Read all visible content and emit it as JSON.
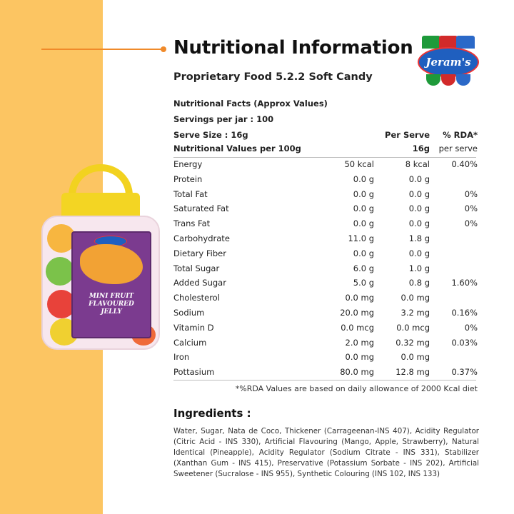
{
  "header": {
    "title": "Nutritional Information",
    "subtitle": "Proprietary Food 5.2.2 Soft Candy"
  },
  "logo": {
    "brand": "Jeram's"
  },
  "product": {
    "label_text": "MINI FRUIT FLAVOURED JELLY"
  },
  "facts": {
    "heading": "Nutritional  Facts (Approx Values)",
    "servings": "Servings  per jar : 100",
    "serve_size": "Serve Size : 16g",
    "per100_label": "Nutritional  Values per 100g",
    "per_serve_line1": "Per Serve",
    "per_serve_line2": "16g",
    "rda_line1": "% RDA*",
    "rda_line2": "per serve",
    "rows": [
      {
        "name": "Energy",
        "per100": "50 kcal",
        "serve": "8 kcal",
        "rda": "0.40%"
      },
      {
        "name": "Protein",
        "per100": "0.0 g",
        "serve": "0.0 g",
        "rda": ""
      },
      {
        "name": "Total  Fat",
        "per100": "0.0 g",
        "serve": "0.0 g",
        "rda": "0%"
      },
      {
        "name": "Saturated  Fat",
        "per100": "0.0 g",
        "serve": "0.0 g",
        "rda": "0%"
      },
      {
        "name": "Trans  Fat",
        "per100": "0.0 g",
        "serve": "0.0 g",
        "rda": "0%"
      },
      {
        "name": "Carbohydrate",
        "per100": "11.0 g",
        "serve": "1.8 g",
        "rda": ""
      },
      {
        "name": "Dietary  Fiber",
        "per100": "0.0 g",
        "serve": "0.0 g",
        "rda": ""
      },
      {
        "name": "Total Sugar",
        "per100": "6.0 g",
        "serve": "1.0 g",
        "rda": ""
      },
      {
        "name": "Added Sugar",
        "per100": "5.0 g",
        "serve": "0.8 g",
        "rda": "1.60%"
      },
      {
        "name": "Cholesterol",
        "per100": "0.0 mg",
        "serve": "0.0 mg",
        "rda": ""
      },
      {
        "name": "Sodium",
        "per100": "20.0 mg",
        "serve": "3.2 mg",
        "rda": "0.16%"
      },
      {
        "name": "Vitamin D",
        "per100": "0.0 mcg",
        "serve": "0.0 mcg",
        "rda": "0%"
      },
      {
        "name": "Calcium",
        "per100": "2.0 mg",
        "serve": "0.32 mg",
        "rda": "0.03%"
      },
      {
        "name": "Iron",
        "per100": "0.0 mg",
        "serve": "0.0 mg",
        "rda": ""
      },
      {
        "name": "Pottasium",
        "per100": "80.0 mg",
        "serve": "12.8 mg",
        "rda": "0.37%"
      }
    ],
    "footnote": "*%RDA Values are based on daily allowance of 2000 Kcal diet"
  },
  "ingredients": {
    "title": "Ingredients :",
    "text": "Water, Sugar, Nata de Coco, Thickener (Carrageenan-INS 407), Acidity Regulator (Citric Acid - INS 330), Artificial Flavouring (Mango, Apple, Strawberry), Natural Identical (Pineapple), Acidity Regulator (Sodium Citrate - INS 331), Stabilizer (Xanthan Gum - INS 415), Preservative (Potassium Sorbate - INS 202), Artificial Sweetener (Sucralose - INS 955), Synthetic Colouring (INS 102, INS 133)"
  },
  "colors": {
    "side_band": "#fcc562",
    "accent": "#f08a2a"
  }
}
